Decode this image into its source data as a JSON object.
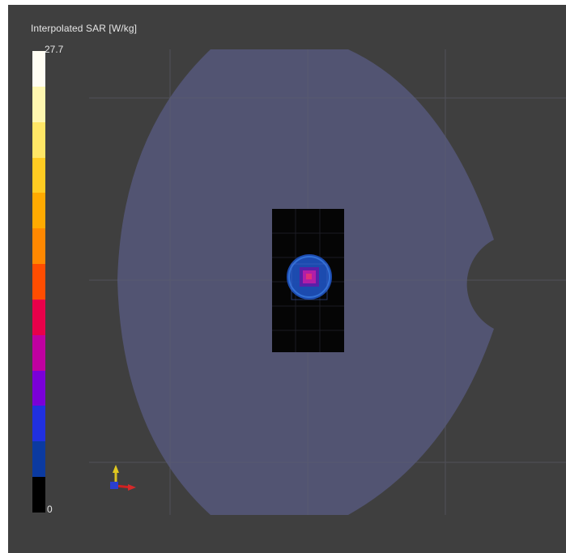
{
  "legend": {
    "title": "Interpolated SAR [W/kg]",
    "max_label": "27.7",
    "min_label": "0",
    "color_steps": [
      "#fffdf3",
      "#fff7b0",
      "#ffe766",
      "#ffcc22",
      "#ffaa00",
      "#ff8800",
      "#ff4d00",
      "#e8004a",
      "#c000a0",
      "#7a00d8",
      "#2030e0",
      "#0b3aa0",
      "#000000"
    ]
  },
  "colors": {
    "background": "#3f3f3f",
    "phantom": "#545676",
    "device": "#050505",
    "hotspot_outer": "#1f5ad0",
    "hotspot_inner": "#c028b0",
    "grid_line": "#5a5a66"
  },
  "icons": {
    "axes": "xyz-axes-icon"
  }
}
